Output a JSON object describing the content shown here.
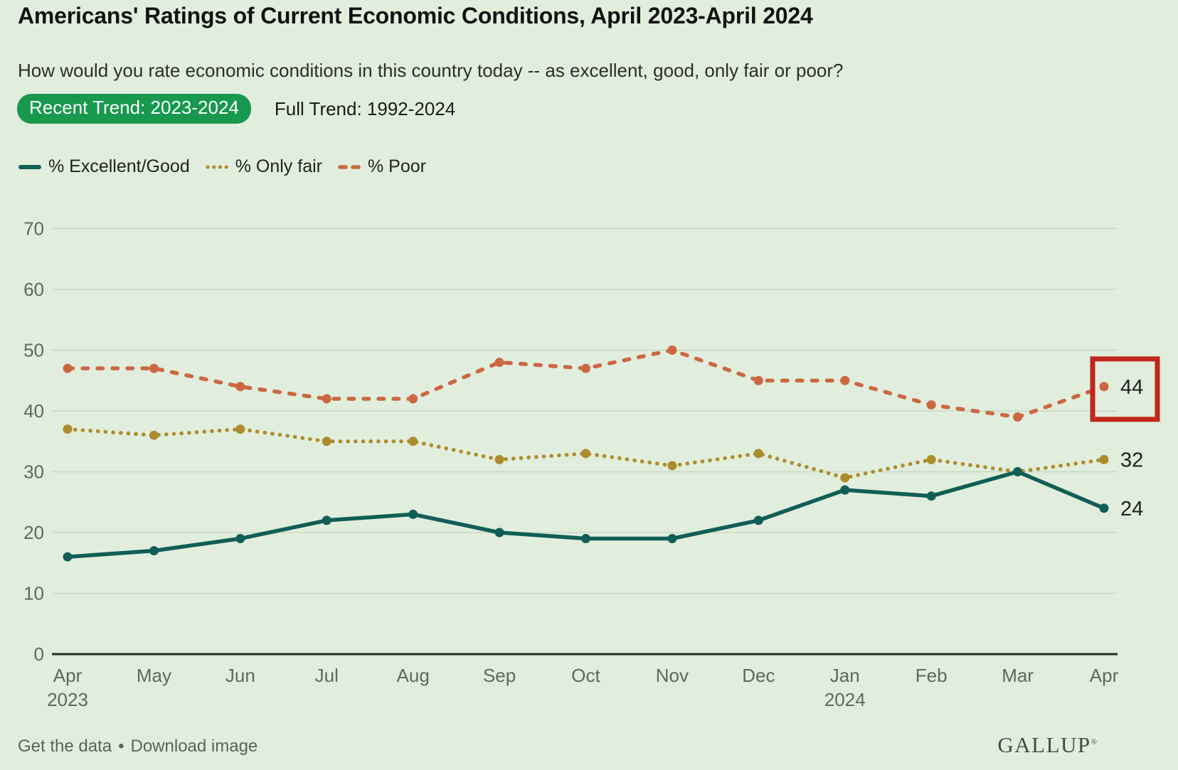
{
  "page": {
    "background_color": "#e1eedd"
  },
  "header": {
    "title": "Americans' Ratings of Current Economic Conditions, April 2023-April 2024",
    "subtitle": "How would you rate economic conditions in this country today -- as excellent, good, only fair or poor?",
    "tabs": [
      {
        "label": "Recent Trend: 2023-2024",
        "active": true,
        "badge_color": "#18994e"
      },
      {
        "label": "Full Trend: 1992-2024",
        "active": false
      }
    ]
  },
  "legend": {
    "items": [
      {
        "label": "% Excellent/Good",
        "style": "solid",
        "color": "#115e56"
      },
      {
        "label": "% Only fair",
        "style": "dotted",
        "color": "#ad8c2c"
      },
      {
        "label": "% Poor",
        "style": "dashed",
        "color": "#cb6842"
      }
    ]
  },
  "chart_data": {
    "type": "line",
    "title": "Americans' Ratings of Current Economic Conditions, April 2023-April 2024",
    "xlabel": "",
    "ylabel": "",
    "categories": [
      "Apr 2023",
      "May",
      "Jun",
      "Jul",
      "Aug",
      "Sep",
      "Oct",
      "Nov",
      "Dec",
      "Jan 2024",
      "Feb",
      "Mar",
      "Apr"
    ],
    "x_ticks": [
      {
        "month": "Apr",
        "year": "2023"
      },
      {
        "month": "May"
      },
      {
        "month": "Jun"
      },
      {
        "month": "Jul"
      },
      {
        "month": "Aug"
      },
      {
        "month": "Sep"
      },
      {
        "month": "Oct"
      },
      {
        "month": "Nov"
      },
      {
        "month": "Dec"
      },
      {
        "month": "Jan",
        "year": "2024"
      },
      {
        "month": "Feb"
      },
      {
        "month": "Mar"
      },
      {
        "month": "Apr"
      }
    ],
    "series": [
      {
        "name": "% Excellent/Good",
        "color": "#115e56",
        "line_style": "solid",
        "values": [
          16,
          17,
          19,
          22,
          23,
          20,
          19,
          19,
          22,
          27,
          26,
          30,
          24
        ],
        "end_label": "24"
      },
      {
        "name": "% Only fair",
        "color": "#ad8c2c",
        "line_style": "dotted",
        "values": [
          37,
          36,
          37,
          35,
          35,
          32,
          33,
          31,
          33,
          29,
          32,
          30,
          32
        ],
        "end_label": "32"
      },
      {
        "name": "% Poor",
        "color": "#cb6842",
        "line_style": "dashed",
        "values": [
          47,
          47,
          44,
          42,
          42,
          48,
          47,
          50,
          45,
          45,
          41,
          39,
          44
        ],
        "end_label": "44"
      }
    ],
    "ylim": [
      0,
      70
    ],
    "yticks": [
      0,
      10,
      20,
      30,
      40,
      50,
      60,
      70
    ],
    "grid": true,
    "legend_position": "top-left",
    "highlight": {
      "series": "% Poor",
      "category": "Apr",
      "value": 44,
      "box_color": "#c1271a"
    }
  },
  "footer": {
    "links": [
      "Get the data",
      "Download image"
    ],
    "separator": "•",
    "brand": "GALLUP",
    "registered_mark": "®"
  }
}
